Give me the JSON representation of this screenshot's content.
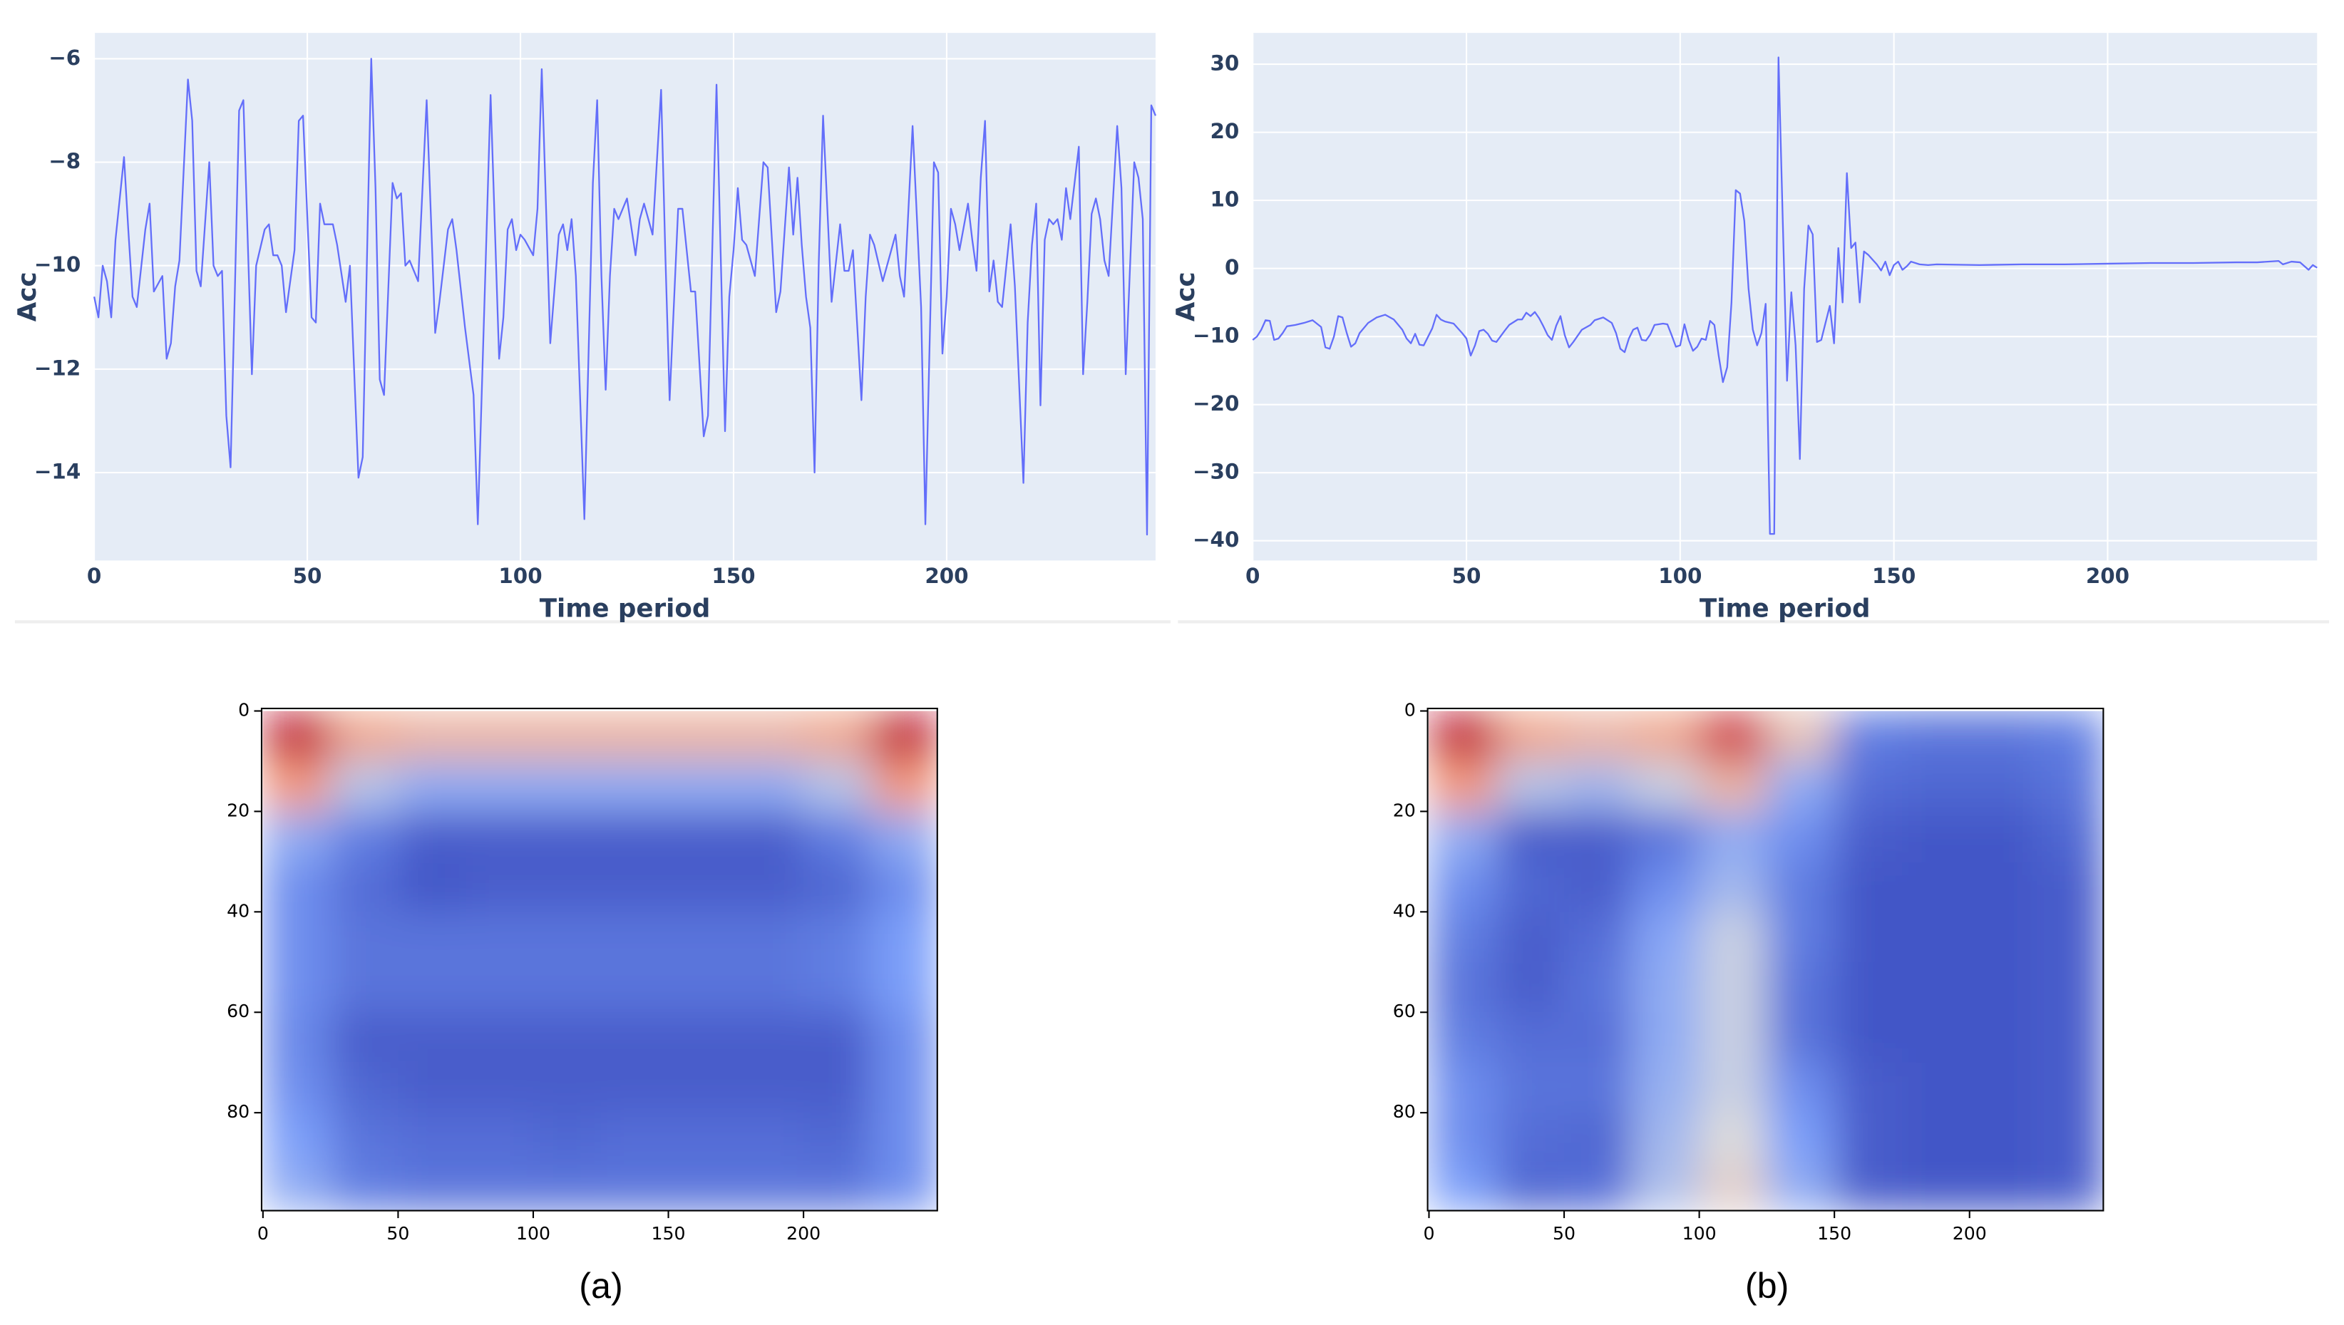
{
  "chart_data": [
    {
      "type": "line",
      "x_label": "Time period",
      "y_label": "Acc",
      "color": "#636efa",
      "background": "#e5ecf6",
      "grid": true,
      "xlim": [
        0,
        249
      ],
      "ylim": [
        -15.7,
        -5.5
      ],
      "xticks": [
        0,
        50,
        100,
        150,
        200
      ],
      "yticks": [
        {
          "value": -14,
          "label": "−14"
        },
        {
          "value": -12,
          "label": "−12"
        },
        {
          "value": -10,
          "label": "−10"
        },
        {
          "value": -8,
          "label": "−8"
        },
        {
          "value": -6,
          "label": "−6"
        }
      ],
      "x": [
        0,
        1,
        2,
        3,
        4,
        5,
        6,
        7,
        8,
        9,
        10,
        12,
        13,
        14,
        16,
        17,
        18,
        19,
        20,
        22,
        23,
        24,
        25,
        27,
        28,
        29,
        30,
        31,
        32,
        33,
        34,
        35,
        37,
        38,
        40,
        41,
        42,
        43,
        44,
        45,
        47,
        48,
        49,
        51,
        52,
        53,
        54,
        56,
        57,
        59,
        60,
        62,
        63,
        65,
        66,
        67,
        68,
        70,
        71,
        72,
        73,
        74,
        76,
        78,
        80,
        81,
        83,
        84,
        85,
        87,
        89,
        90,
        92,
        93,
        95,
        96,
        97,
        98,
        99,
        100,
        101,
        103,
        104,
        105,
        107,
        109,
        110,
        111,
        112,
        113,
        115,
        117,
        118,
        119,
        120,
        121,
        122,
        123,
        125,
        127,
        128,
        129,
        131,
        133,
        134,
        135,
        137,
        138,
        140,
        141,
        143,
        144,
        146,
        148,
        149,
        150,
        151,
        152,
        153,
        155,
        157,
        158,
        160,
        161,
        163,
        164,
        165,
        166,
        167,
        168,
        169,
        170,
        171,
        173,
        175,
        176,
        177,
        178,
        180,
        181,
        182,
        183,
        185,
        187,
        188,
        189,
        190,
        192,
        194,
        195,
        197,
        198,
        199,
        200,
        201,
        202,
        203,
        205,
        206,
        207,
        208,
        209,
        210,
        211,
        212,
        213,
        215,
        216,
        218,
        219,
        220,
        221,
        222,
        223,
        224,
        225,
        226,
        227,
        228,
        229,
        231,
        232,
        233,
        234,
        235,
        236,
        237,
        238,
        240,
        241,
        242,
        244,
        245,
        246,
        247,
        248,
        249
      ],
      "values": [
        -10.6,
        -11,
        -10,
        -10.3,
        -11,
        -9.5,
        -8.7,
        -7.9,
        -9.3,
        -10.6,
        -10.8,
        -9.3,
        -8.8,
        -10.5,
        -10.2,
        -11.8,
        -11.5,
        -10.4,
        -9.9,
        -6.4,
        -7.2,
        -10.1,
        -10.4,
        -8,
        -10,
        -10.2,
        -10.1,
        -12.9,
        -13.9,
        -10.5,
        -7,
        -6.8,
        -12.1,
        -10,
        -9.3,
        -9.2,
        -9.8,
        -9.8,
        -10,
        -10.9,
        -9.7,
        -7.2,
        -7.1,
        -11,
        -11.1,
        -8.8,
        -9.2,
        -9.2,
        -9.6,
        -10.7,
        -10,
        -14.1,
        -13.7,
        -6,
        -8.5,
        -12.2,
        -12.5,
        -8.4,
        -8.7,
        -8.6,
        -10,
        -9.9,
        -10.3,
        -6.8,
        -11.3,
        -10.7,
        -9.3,
        -9.1,
        -9.7,
        -11.2,
        -12.5,
        -15,
        -9.5,
        -6.7,
        -11.8,
        -11,
        -9.3,
        -9.1,
        -9.7,
        -9.4,
        -9.5,
        -9.8,
        -8.9,
        -6.2,
        -11.5,
        -9.4,
        -9.2,
        -9.7,
        -9.1,
        -10.2,
        -14.9,
        -8.4,
        -6.8,
        -10.2,
        -12.4,
        -10.2,
        -8.9,
        -9.1,
        -8.7,
        -9.8,
        -9.1,
        -8.8,
        -9.4,
        -6.6,
        -9.8,
        -12.6,
        -8.9,
        -8.9,
        -10.5,
        -10.5,
        -13.3,
        -12.9,
        -6.5,
        -13.2,
        -10.6,
        -9.7,
        -8.5,
        -9.5,
        -9.6,
        -10.2,
        -8,
        -8.1,
        -10.9,
        -10.5,
        -8.1,
        -9.4,
        -8.3,
        -9.6,
        -10.6,
        -11.2,
        -14,
        -9.9,
        -7.1,
        -10.7,
        -9.2,
        -10.1,
        -10.1,
        -9.7,
        -12.6,
        -10.6,
        -9.4,
        -9.6,
        -10.3,
        -9.7,
        -9.4,
        -10.2,
        -10.6,
        -7.3,
        -10.8,
        -15,
        -8,
        -8.2,
        -11.7,
        -10.6,
        -8.9,
        -9.2,
        -9.7,
        -8.8,
        -9.5,
        -10.1,
        -8.3,
        -7.2,
        -10.5,
        -9.9,
        -10.7,
        -10.8,
        -9.2,
        -10.4,
        -14.2,
        -11.1,
        -9.6,
        -8.8,
        -12.7,
        -9.5,
        -9.1,
        -9.2,
        -9.1,
        -9.5,
        -8.5,
        -9.1,
        -7.7,
        -12.1,
        -10.7,
        -9,
        -8.7,
        -9.1,
        -9.9,
        -10.2,
        -7.3,
        -8.5,
        -12.1,
        -8,
        -8.3,
        -9.1,
        -15.2,
        -6.9,
        -7.1
      ]
    },
    {
      "type": "line",
      "x_label": "Time period",
      "y_label": "Acc",
      "color": "#636efa",
      "background": "#e5ecf6",
      "grid": true,
      "xlim": [
        0,
        249
      ],
      "ylim": [
        -42.9,
        34.6
      ],
      "xticks": [
        0,
        50,
        100,
        150,
        200
      ],
      "yticks": [
        {
          "value": -40,
          "label": "−40"
        },
        {
          "value": -30,
          "label": "−30"
        },
        {
          "value": -20,
          "label": "−20"
        },
        {
          "value": -10,
          "label": "−10"
        },
        0,
        10,
        20,
        30
      ],
      "x": [
        0,
        1,
        2,
        3,
        4,
        5,
        6,
        7,
        8,
        10,
        12,
        14,
        16,
        17,
        18,
        19,
        20,
        21,
        22,
        23,
        24,
        25,
        27,
        29,
        31,
        33,
        35,
        36,
        37,
        38,
        39,
        40,
        42,
        43,
        44,
        45,
        47,
        49,
        50,
        51,
        52,
        53,
        54,
        55,
        56,
        57,
        59,
        60,
        62,
        63,
        64,
        65,
        66,
        67,
        68,
        69,
        70,
        71,
        72,
        73,
        74,
        75,
        77,
        79,
        80,
        82,
        84,
        85,
        86,
        87,
        88,
        89,
        90,
        91,
        92,
        93,
        94,
        96,
        97,
        98,
        99,
        100,
        101,
        102,
        103,
        104,
        105,
        106,
        107,
        108,
        109,
        110,
        111,
        112,
        113,
        114,
        115,
        116,
        117,
        118,
        119,
        120,
        121,
        122,
        123,
        124,
        125,
        126,
        127,
        128,
        129,
        130,
        131,
        132,
        133,
        134,
        135,
        136,
        137,
        138,
        139,
        140,
        141,
        142,
        143,
        144,
        145,
        146,
        147,
        148,
        149,
        150,
        151,
        152,
        153,
        154,
        156,
        158,
        160,
        170,
        180,
        190,
        200,
        210,
        220,
        230,
        235,
        240,
        241,
        243,
        245,
        247,
        248,
        249
      ],
      "values": [
        -10.5,
        -10,
        -9,
        -7.6,
        -7.7,
        -10.5,
        -10.3,
        -9.5,
        -8.5,
        -8.3,
        -8,
        -7.6,
        -8.6,
        -11.6,
        -11.8,
        -10,
        -7,
        -7.2,
        -9.5,
        -11.5,
        -11,
        -9.5,
        -8,
        -7.2,
        -6.8,
        -7.5,
        -9,
        -10.3,
        -11,
        -9.6,
        -11.2,
        -11.3,
        -8.8,
        -6.8,
        -7.5,
        -7.8,
        -8.1,
        -9.5,
        -10.3,
        -12.8,
        -11.3,
        -9.2,
        -9,
        -9.6,
        -10.6,
        -10.8,
        -9.1,
        -8.3,
        -7.5,
        -7.5,
        -6.5,
        -7,
        -6.4,
        -7.3,
        -8.5,
        -9.8,
        -10.5,
        -8.4,
        -7,
        -9.8,
        -11.6,
        -10.8,
        -9,
        -8.3,
        -7.6,
        -7.2,
        -8,
        -9.5,
        -11.8,
        -12.3,
        -10.3,
        -9,
        -8.7,
        -10.5,
        -10.6,
        -9.7,
        -8.3,
        -8.1,
        -8.2,
        -9.8,
        -11.5,
        -11.3,
        -8.2,
        -10.5,
        -12.1,
        -11.5,
        -10.3,
        -10.5,
        -7.7,
        -8.3,
        -12.8,
        -16.7,
        -14.5,
        -5,
        11.5,
        11,
        7,
        -3,
        -9,
        -11.3,
        -9.5,
        -5.2,
        -39,
        -39,
        31,
        7,
        -16.5,
        -3.5,
        -11.3,
        -28,
        -3,
        6.3,
        5,
        -10.8,
        -10.5,
        -8,
        -5.5,
        -11,
        3,
        -5,
        14,
        3,
        3.8,
        -5,
        2.5,
        2,
        1.3,
        0.6,
        -0.3,
        1,
        -1,
        0.5,
        1,
        -0.2,
        0.3,
        1,
        0.6,
        0.5,
        0.6,
        0.5,
        0.6,
        0.6,
        0.7,
        0.8,
        0.8,
        0.9,
        0.9,
        1.1,
        0.6,
        1,
        0.9,
        -0.2,
        0.5,
        0.1
      ]
    },
    {
      "type": "heatmap",
      "caption": "(a)",
      "colormap": "coolwarm",
      "xlim": [
        -0.5,
        249.5
      ],
      "ylim": [
        99.5,
        -0.5
      ],
      "xticks": [
        0,
        50,
        100,
        150,
        200
      ],
      "yticks": [
        0,
        20,
        40,
        60,
        80
      ],
      "x": [
        0,
        25,
        50,
        75,
        100,
        125,
        150,
        175,
        200,
        225
      ],
      "y": [
        0,
        10,
        20,
        30,
        40,
        50,
        60,
        70,
        80,
        90
      ],
      "z": [
        [
          0.95,
          0.7,
          0.65,
          0.65,
          0.65,
          0.65,
          0.65,
          0.65,
          0.7,
          0.95
        ],
        [
          0.75,
          0.4,
          0.3,
          0.3,
          0.3,
          0.3,
          0.3,
          0.3,
          0.4,
          0.75
        ],
        [
          0.3,
          0.15,
          0.05,
          0.05,
          0.05,
          0.05,
          0.05,
          0.05,
          0.15,
          0.3
        ],
        [
          0.2,
          0.1,
          0.03,
          0.05,
          0.05,
          0.05,
          0.05,
          0.05,
          0.08,
          0.2
        ],
        [
          0.2,
          0.12,
          0.12,
          0.12,
          0.12,
          0.12,
          0.12,
          0.12,
          0.15,
          0.25
        ],
        [
          0.2,
          0.12,
          0.12,
          0.12,
          0.12,
          0.12,
          0.12,
          0.12,
          0.15,
          0.25
        ],
        [
          0.18,
          0.05,
          0.05,
          0.05,
          0.05,
          0.05,
          0.05,
          0.05,
          0.05,
          0.2
        ],
        [
          0.2,
          0.08,
          0.05,
          0.05,
          0.05,
          0.05,
          0.05,
          0.05,
          0.05,
          0.2
        ],
        [
          0.25,
          0.12,
          0.1,
          0.1,
          0.08,
          0.1,
          0.1,
          0.1,
          0.08,
          0.2
        ],
        [
          0.3,
          0.15,
          0.12,
          0.12,
          0.12,
          0.12,
          0.12,
          0.12,
          0.12,
          0.2
        ]
      ]
    },
    {
      "type": "heatmap",
      "caption": "(b)",
      "colormap": "coolwarm",
      "xlim": [
        -0.5,
        249.5
      ],
      "ylim": [
        99.5,
        -0.5
      ],
      "xticks": [
        0,
        50,
        100,
        150,
        200
      ],
      "yticks": [
        0,
        20,
        40,
        60,
        80
      ],
      "x": [
        0,
        25,
        50,
        75,
        100,
        125,
        150,
        175,
        200,
        225
      ],
      "y": [
        0,
        10,
        20,
        30,
        40,
        50,
        60,
        70,
        80,
        90
      ],
      "z": [
        [
          0.95,
          0.7,
          0.65,
          0.7,
          0.9,
          0.6,
          0.15,
          0.12,
          0.12,
          0.15
        ],
        [
          0.75,
          0.4,
          0.35,
          0.45,
          0.65,
          0.3,
          0.1,
          0.08,
          0.08,
          0.12
        ],
        [
          0.3,
          0.05,
          0.05,
          0.12,
          0.3,
          0.2,
          0.05,
          0.03,
          0.03,
          0.08
        ],
        [
          0.2,
          0.08,
          0.05,
          0.2,
          0.35,
          0.15,
          0.03,
          0.03,
          0.03,
          0.05
        ],
        [
          0.15,
          0.05,
          0.1,
          0.28,
          0.45,
          0.15,
          0.03,
          0.03,
          0.03,
          0.05
        ],
        [
          0.12,
          0.05,
          0.12,
          0.3,
          0.45,
          0.12,
          0.03,
          0.03,
          0.03,
          0.05
        ],
        [
          0.15,
          0.1,
          0.1,
          0.3,
          0.45,
          0.12,
          0.03,
          0.03,
          0.03,
          0.05
        ],
        [
          0.2,
          0.12,
          0.12,
          0.32,
          0.45,
          0.2,
          0.05,
          0.03,
          0.03,
          0.05
        ],
        [
          0.2,
          0.1,
          0.08,
          0.35,
          0.5,
          0.25,
          0.05,
          0.03,
          0.03,
          0.05
        ],
        [
          0.25,
          0.08,
          0.1,
          0.38,
          0.55,
          0.3,
          0.05,
          0.03,
          0.03,
          0.05
        ]
      ]
    }
  ]
}
